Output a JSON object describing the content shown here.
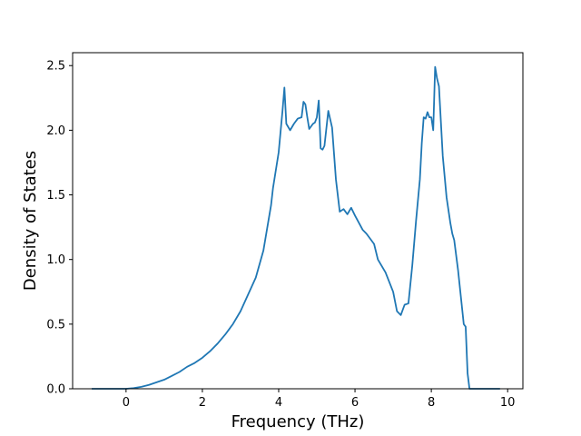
{
  "chart_data": {
    "type": "line",
    "title": "",
    "xlabel": "Frequency (THz)",
    "ylabel": "Density of States",
    "xlim": [
      -1.4,
      10.4
    ],
    "ylim": [
      0,
      2.6
    ],
    "xticks": [
      0,
      2,
      4,
      6,
      8,
      10
    ],
    "xtick_labels": [
      "0",
      "2",
      "4",
      "6",
      "8",
      "10"
    ],
    "yticks": [
      0.0,
      0.5,
      1.0,
      1.5,
      2.0,
      2.5
    ],
    "ytick_labels": [
      "0.0",
      "0.5",
      "1.0",
      "1.5",
      "2.0",
      "2.5"
    ],
    "grid": false,
    "legend": "none",
    "series": [
      {
        "color": "#1f77b4",
        "x": [
          -0.9,
          0.0,
          0.2,
          0.4,
          0.6,
          0.8,
          1.0,
          1.2,
          1.4,
          1.6,
          1.8,
          2.0,
          2.2,
          2.4,
          2.6,
          2.8,
          3.0,
          3.2,
          3.4,
          3.6,
          3.8,
          3.85,
          4.0,
          4.1,
          4.15,
          4.2,
          4.3,
          4.4,
          4.5,
          4.6,
          4.65,
          4.7,
          4.75,
          4.8,
          4.9,
          4.95,
          5.0,
          5.05,
          5.1,
          5.15,
          5.2,
          5.3,
          5.4,
          5.45,
          5.5,
          5.6,
          5.7,
          5.8,
          5.9,
          6.0,
          6.2,
          6.3,
          6.5,
          6.6,
          6.8,
          7.0,
          7.1,
          7.2,
          7.3,
          7.4,
          7.5,
          7.6,
          7.7,
          7.75,
          7.8,
          7.85,
          7.9,
          7.95,
          8.0,
          8.05,
          8.1,
          8.15,
          8.2,
          8.3,
          8.4,
          8.5,
          8.55,
          8.6,
          8.7,
          8.85,
          8.9,
          8.95,
          9.0,
          9.8
        ],
        "y": [
          0.0,
          0.0,
          0.005,
          0.015,
          0.03,
          0.05,
          0.07,
          0.1,
          0.13,
          0.17,
          0.2,
          0.24,
          0.29,
          0.35,
          0.42,
          0.5,
          0.6,
          0.73,
          0.86,
          1.07,
          1.42,
          1.55,
          1.83,
          2.15,
          2.33,
          2.05,
          2.0,
          2.05,
          2.09,
          2.1,
          2.22,
          2.2,
          2.1,
          2.01,
          2.05,
          2.06,
          2.1,
          2.23,
          1.86,
          1.85,
          1.88,
          2.15,
          2.02,
          1.82,
          1.62,
          1.37,
          1.39,
          1.35,
          1.4,
          1.34,
          1.23,
          1.2,
          1.12,
          1.0,
          0.9,
          0.75,
          0.6,
          0.57,
          0.65,
          0.66,
          0.95,
          1.3,
          1.62,
          1.9,
          2.1,
          2.09,
          2.14,
          2.1,
          2.1,
          2.0,
          2.49,
          2.4,
          2.34,
          1.8,
          1.48,
          1.28,
          1.2,
          1.15,
          0.92,
          0.5,
          0.48,
          0.12,
          0.0,
          0.0
        ]
      }
    ]
  }
}
